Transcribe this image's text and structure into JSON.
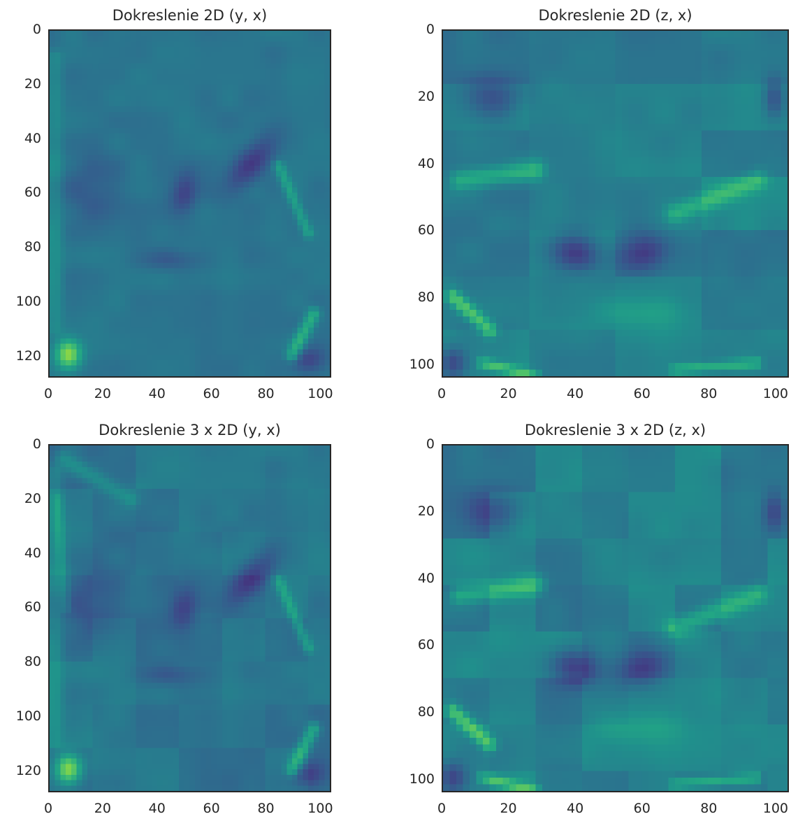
{
  "chart_data": [
    {
      "type": "heatmap",
      "title": "Dokreslenie 2D (y, x)",
      "x_ticks": [
        "0",
        "20",
        "40",
        "60",
        "80",
        "100"
      ],
      "y_ticks": [
        "0",
        "20",
        "40",
        "60",
        "80",
        "100",
        "120"
      ],
      "xlim": [
        0,
        104
      ],
      "ylim": [
        128,
        0
      ],
      "colormap": "viridis",
      "slice": "yx",
      "variant": "2d"
    },
    {
      "type": "heatmap",
      "title": "Dokreslenie 2D (z, x)",
      "x_ticks": [
        "0",
        "20",
        "40",
        "60",
        "80",
        "100"
      ],
      "y_ticks": [
        "0",
        "20",
        "40",
        "60",
        "80",
        "100"
      ],
      "xlim": [
        0,
        104
      ],
      "ylim": [
        104,
        0
      ],
      "colormap": "viridis",
      "slice": "zx",
      "variant": "2d"
    },
    {
      "type": "heatmap",
      "title": "Dokreslenie 3 x 2D (y, x)",
      "x_ticks": [
        "0",
        "20",
        "40",
        "60",
        "80",
        "100"
      ],
      "y_ticks": [
        "0",
        "20",
        "40",
        "60",
        "80",
        "100",
        "120"
      ],
      "xlim": [
        0,
        104
      ],
      "ylim": [
        128,
        0
      ],
      "colormap": "viridis",
      "slice": "yx",
      "variant": "3x2d"
    },
    {
      "type": "heatmap",
      "title": "Dokreslenie 3 x 2D (z, x)",
      "x_ticks": [
        "0",
        "20",
        "40",
        "60",
        "80",
        "100"
      ],
      "y_ticks": [
        "0",
        "20",
        "40",
        "60",
        "80",
        "100"
      ],
      "xlim": [
        0,
        104
      ],
      "ylim": [
        104,
        0
      ],
      "colormap": "viridis",
      "slice": "zx",
      "variant": "3x2d"
    }
  ]
}
